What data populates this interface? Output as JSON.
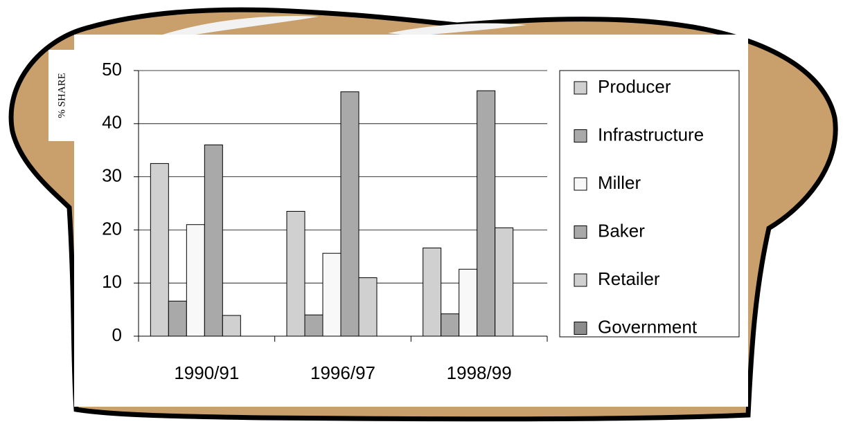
{
  "chart_data": {
    "type": "bar",
    "y_axis_label": "% SHARE",
    "categories": [
      "1990/91",
      "1996/97",
      "1998/99"
    ],
    "series": [
      {
        "name": "Producer",
        "color": "#d0d0d0",
        "values": [
          32.5,
          23.5,
          16.6
        ]
      },
      {
        "name": "Infrastructure",
        "color": "#a9a9a9",
        "values": [
          6.6,
          4,
          4.2
        ]
      },
      {
        "name": "Miller",
        "color": "#f8f8f8",
        "values": [
          21,
          15.6,
          12.6
        ]
      },
      {
        "name": "Baker",
        "color": "#a9a9a9",
        "values": [
          36,
          46,
          46.2
        ]
      },
      {
        "name": "Retailer",
        "color": "#d0d0d0",
        "values": [
          3.9,
          11,
          20.4
        ]
      },
      {
        "name": "Government",
        "color": "#8c8c8c",
        "values": [
          0,
          0,
          0
        ]
      }
    ],
    "ylim": [
      0,
      50
    ],
    "yticks": [
      0,
      10,
      20,
      30,
      40,
      50
    ],
    "grid": true,
    "legend": "right"
  }
}
